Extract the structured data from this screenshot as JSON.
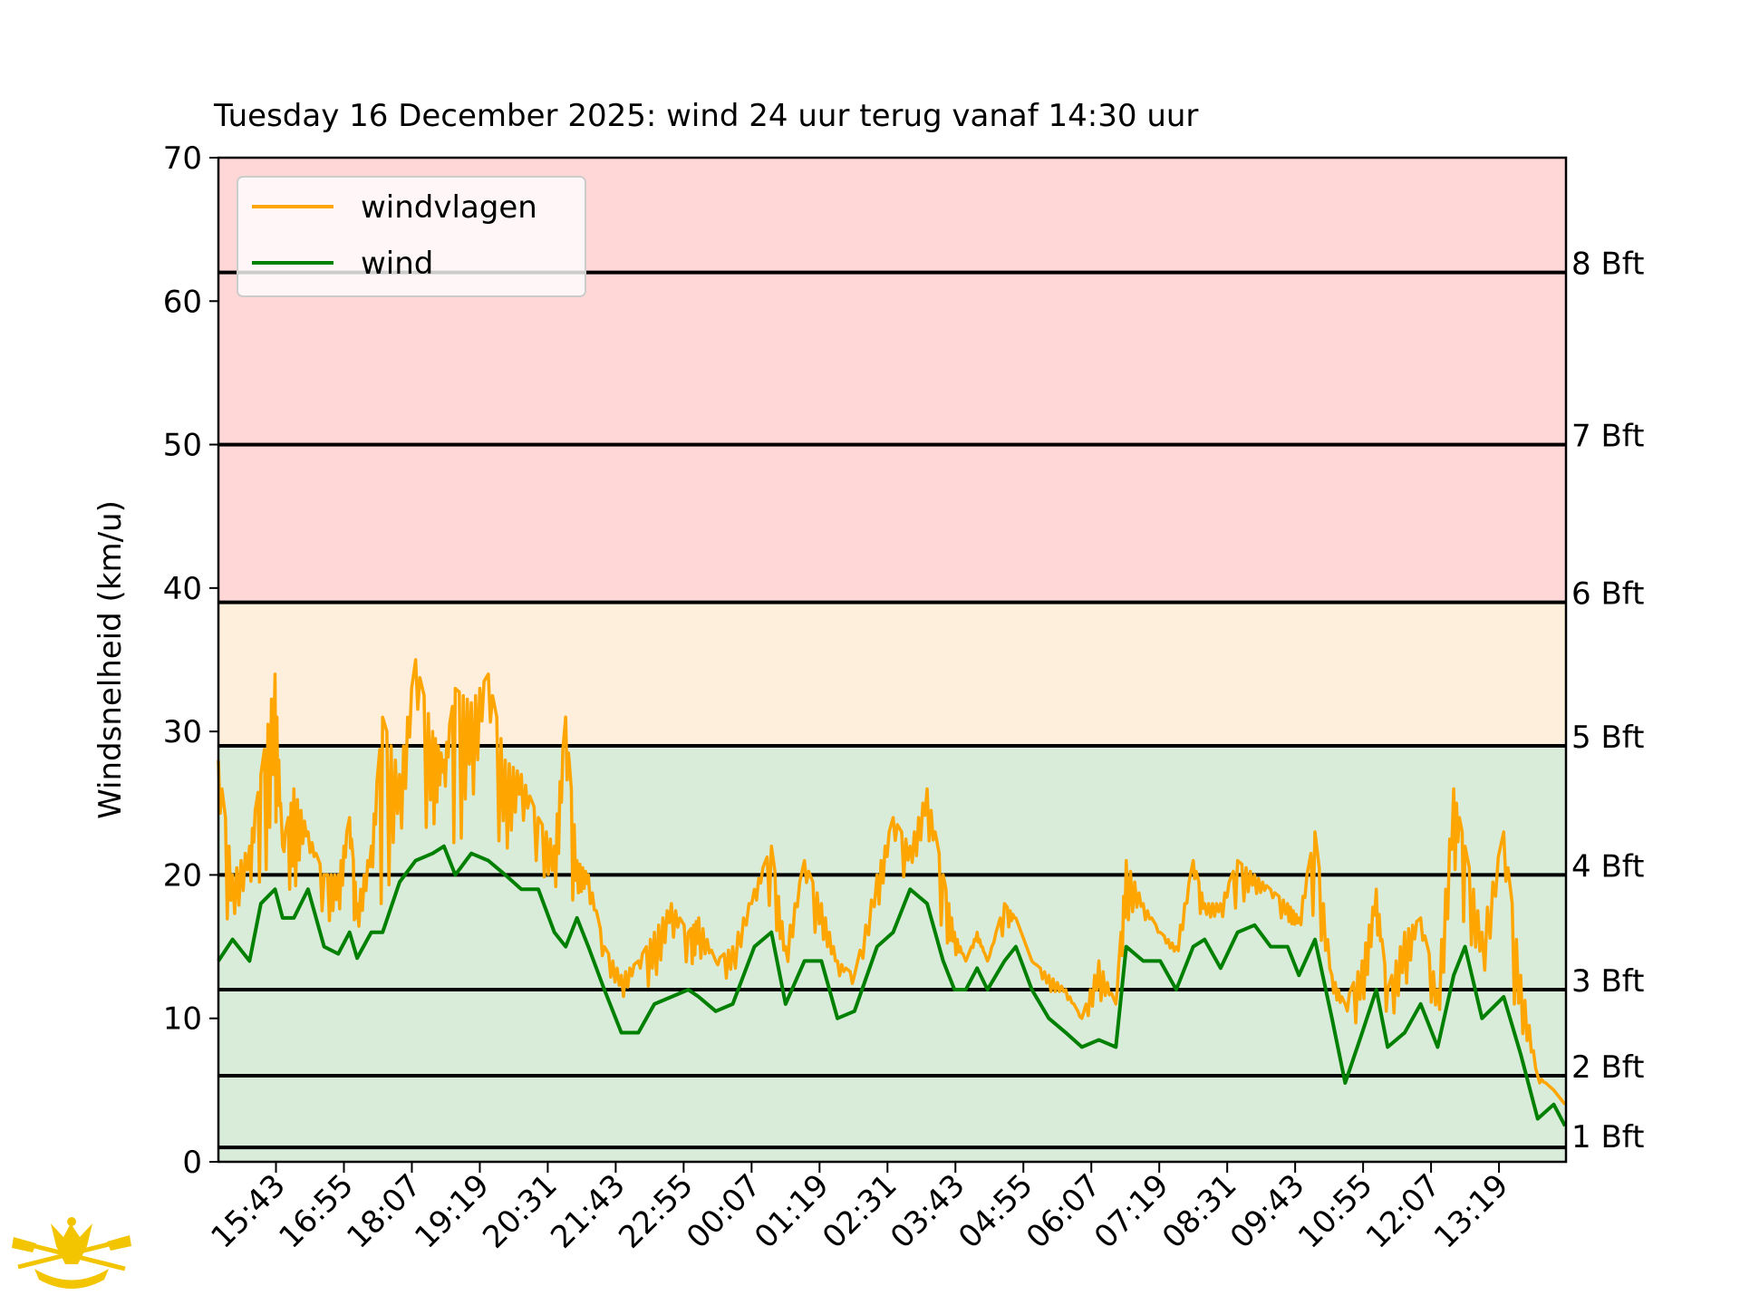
{
  "chart_data": {
    "type": "line",
    "title": "Tuesday 16 December 2025: wind 24 uur terug vanaf 14:30 uur",
    "xlabel": "",
    "ylabel": "Windsnelheid (km/u)",
    "ylim": [
      0,
      70
    ],
    "yticks": [
      "0",
      "10",
      "20",
      "30",
      "40",
      "50",
      "60",
      "70"
    ],
    "x_unit": "minutes since 14:42",
    "xlim": [
      0,
      1428
    ],
    "xtick_positions": [
      61,
      133,
      205,
      277,
      349,
      421,
      493,
      565,
      637,
      709,
      781,
      853,
      925,
      997,
      1069,
      1141,
      1213,
      1285,
      1357
    ],
    "xtick_labels": [
      "15:43",
      "16:55",
      "18:07",
      "19:19",
      "20:31",
      "21:43",
      "22:55",
      "00:07",
      "01:19",
      "02:31",
      "03:43",
      "04:55",
      "06:07",
      "07:19",
      "08:31",
      "09:43",
      "10:55",
      "12:07",
      "13:19"
    ],
    "legend": {
      "placement": "top-left",
      "entries": [
        "windvlagen",
        "wind"
      ]
    },
    "colors": {
      "windvlagen": "#ffa500",
      "wind": "#008000",
      "calm_zone": "#d9ebd9",
      "moderate_zone": "#fdefdb",
      "strong_zone": "#ffd7d7"
    },
    "zones": [
      {
        "from": 0,
        "to": 29,
        "color": "#d9ebd9"
      },
      {
        "from": 29,
        "to": 39,
        "color": "#fdefdb"
      },
      {
        "from": 39,
        "to": 70,
        "color": "#ffd7d7"
      }
    ],
    "beaufort_lines": [
      {
        "value": 1,
        "label": "1 Bft"
      },
      {
        "value": 6,
        "label": "2 Bft"
      },
      {
        "value": 12,
        "label": "3 Bft"
      },
      {
        "value": 20,
        "label": "4 Bft"
      },
      {
        "value": 29,
        "label": "5 Bft"
      },
      {
        "value": 39,
        "label": "6 Bft"
      },
      {
        "value": 50,
        "label": "7 Bft"
      },
      {
        "value": 62,
        "label": "8 Bft"
      }
    ],
    "x": [
      0,
      15,
      33,
      45,
      60,
      68,
      80,
      95,
      112,
      127,
      139,
      147,
      162,
      174,
      192,
      209,
      227,
      239,
      251,
      268,
      286,
      304,
      321,
      339,
      356,
      368,
      380,
      392,
      409,
      427,
      445,
      462,
      480,
      498,
      509,
      527,
      545,
      568,
      586,
      601,
      621,
      639,
      656,
      674,
      698,
      715,
      733,
      751,
      768,
      780,
      792,
      804,
      815,
      833,
      845,
      862,
      880,
      898,
      915,
      933,
      951,
      962,
      980,
      998,
      1015,
      1033,
      1045,
      1062,
      1080,
      1098,
      1115,
      1133,
      1145,
      1162,
      1180,
      1194,
      1212,
      1227,
      1239,
      1257,
      1274,
      1292,
      1309,
      1321,
      1339,
      1362,
      1380,
      1398,
      1415,
      1427
    ],
    "series": [
      {
        "name": "windvlagen",
        "values": [
          28,
          20,
          22,
          27,
          34,
          22,
          26,
          23,
          20,
          20,
          24,
          18,
          22,
          31,
          27,
          35,
          30,
          28,
          33,
          32,
          34,
          28,
          27,
          24,
          22,
          31,
          21,
          20,
          15,
          13,
          14,
          16,
          18,
          16,
          17,
          14,
          15,
          19,
          22,
          15,
          21,
          18,
          14,
          13,
          20,
          24,
          22,
          26,
          20,
          16,
          14,
          16,
          14,
          18,
          17,
          14,
          13,
          12,
          10,
          14,
          11,
          21,
          18,
          16,
          15,
          21,
          18,
          18,
          21,
          20,
          19,
          18,
          17,
          23,
          13,
          11,
          14,
          19,
          12,
          16,
          17,
          12,
          26,
          22,
          16,
          23,
          13,
          6,
          5,
          4
        ]
      },
      {
        "name": "wind",
        "values": [
          14,
          15.5,
          14,
          18,
          19,
          17,
          17,
          19,
          15,
          14.5,
          16,
          14.2,
          16,
          16,
          19.5,
          21,
          21.5,
          22,
          20,
          21.5,
          21,
          20,
          19,
          19,
          16,
          15,
          17,
          15,
          12,
          9,
          9,
          11,
          11.5,
          12,
          11.5,
          10.5,
          11,
          15,
          16,
          11,
          14,
          14,
          10,
          10.5,
          15,
          16,
          19,
          18,
          14,
          12,
          12,
          13.5,
          12,
          14,
          15,
          12,
          10,
          9,
          8,
          8.5,
          8,
          15,
          14,
          14,
          12,
          15,
          15.5,
          13.5,
          16,
          16.5,
          15,
          15,
          13,
          15.5,
          10,
          5.5,
          9,
          12,
          8,
          9,
          11,
          8,
          13,
          15,
          10,
          11.5,
          7.5,
          3,
          4,
          2.5
        ]
      }
    ]
  },
  "logo": {
    "name": "rowing-club-crest"
  }
}
